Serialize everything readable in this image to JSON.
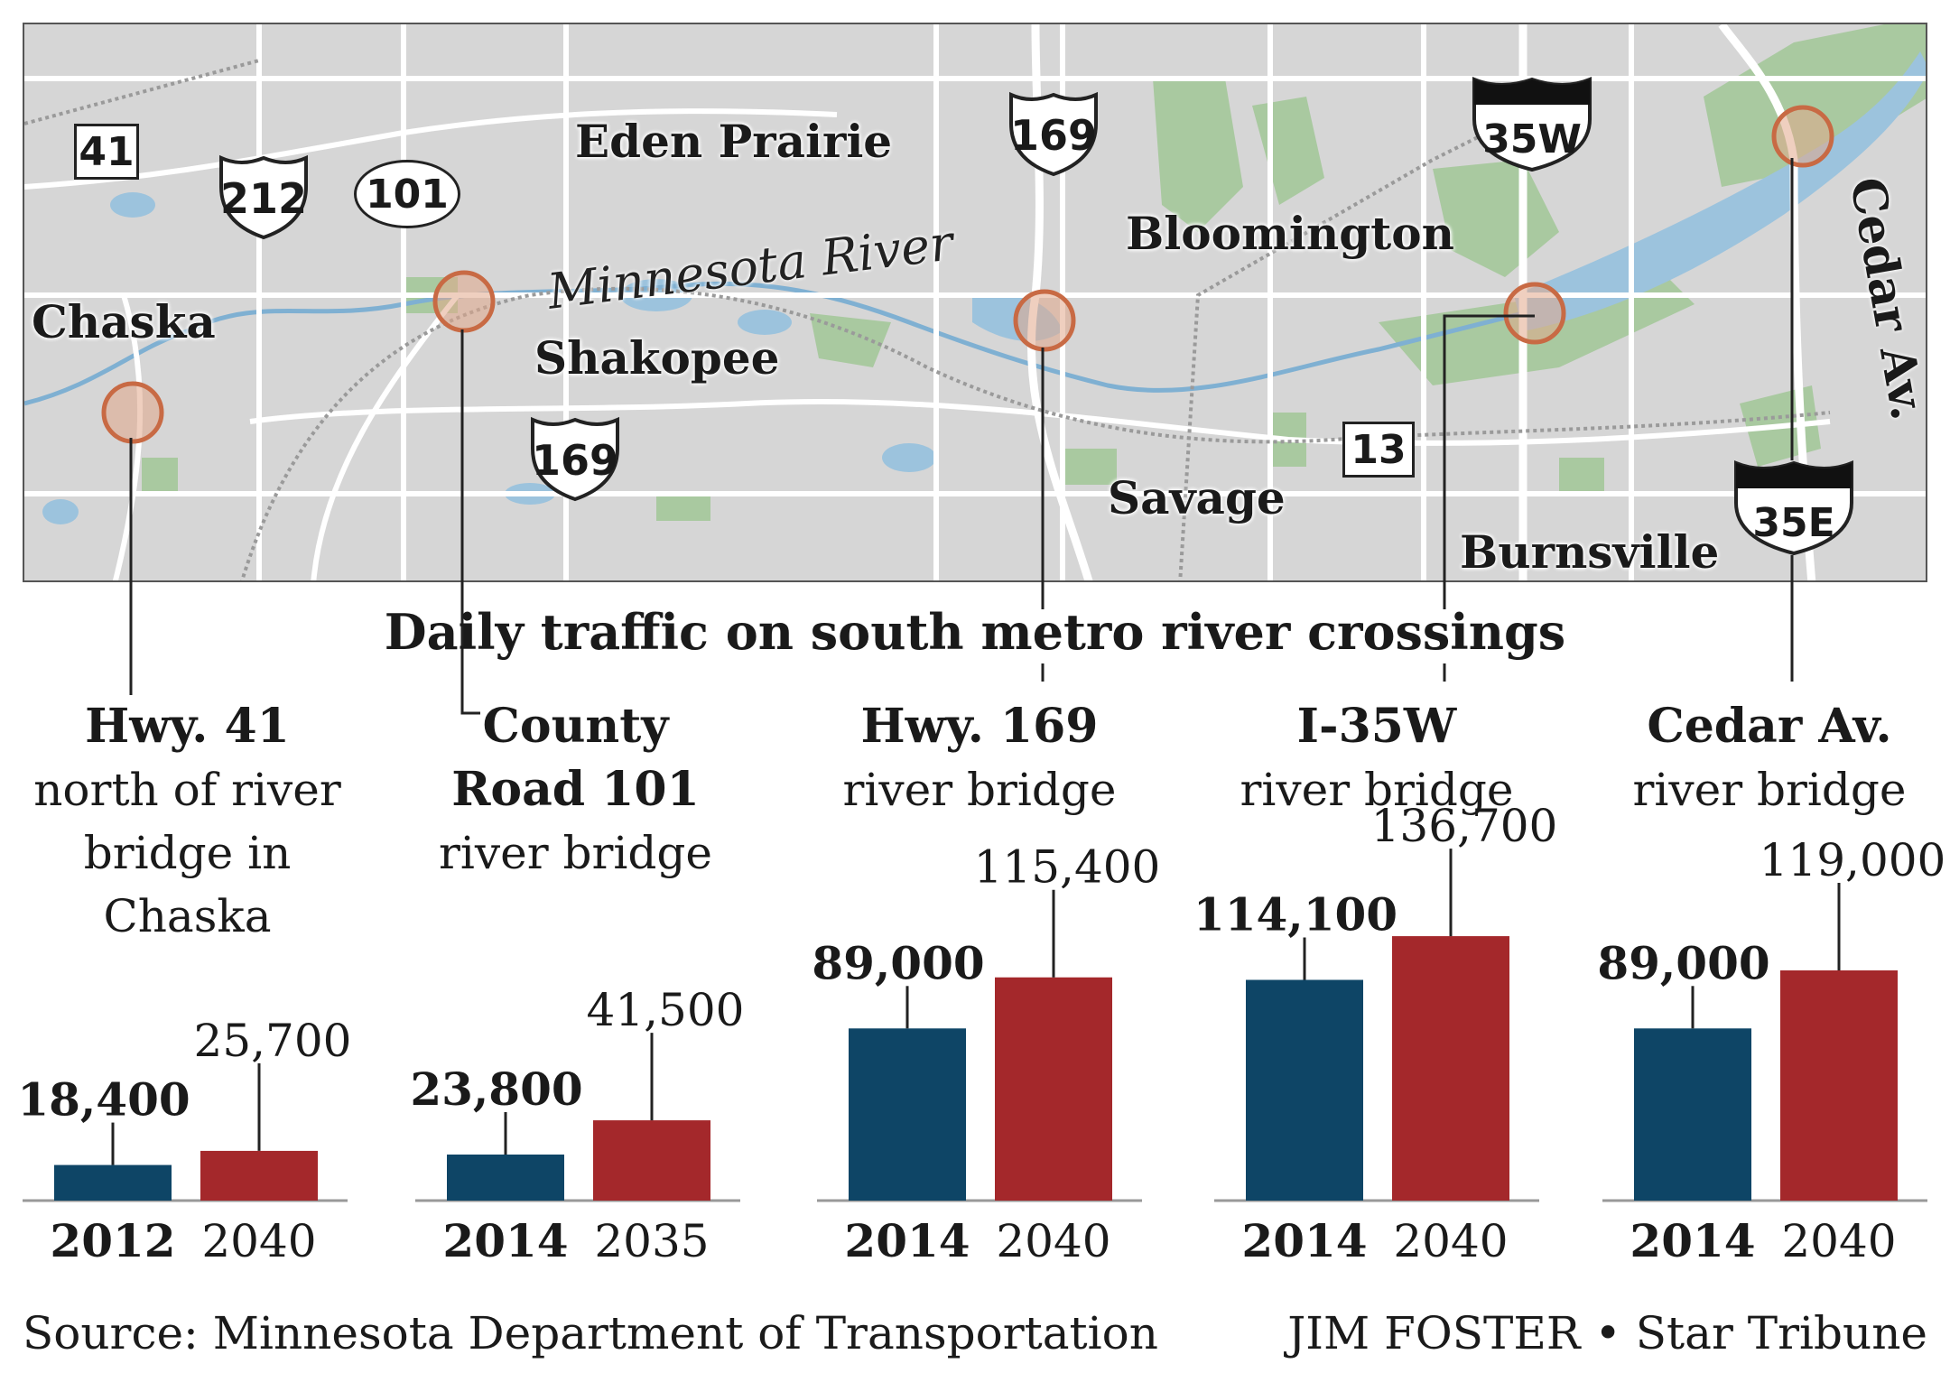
{
  "map": {
    "places": {
      "eden_prairie": "Eden Prairie",
      "bloomington": "Bloomington",
      "chaska": "Chaska",
      "shakopee": "Shakopee",
      "savage": "Savage",
      "burnsville": "Burnsville"
    },
    "river_label": "Minnesota River",
    "cedar_label": "Cedar Av.",
    "shields": {
      "hwy41": "41",
      "us212": "212",
      "cr101": "101",
      "us169_north": "169",
      "us169_south": "169",
      "i35w": "35W",
      "hwy13": "13",
      "i35e": "35E"
    },
    "colors": {
      "land": "#d6d6d6",
      "roads": "#ffffff",
      "water": "#9cc3dd",
      "parks": "#a9c9a0",
      "rail": "#9a9a9a",
      "crossing_marker": "#d08a6a"
    }
  },
  "title": "Daily traffic on south metro river crossings",
  "crossings": [
    {
      "name": "Hwy. 41",
      "desc": "north of river\nbridge in\nChaska",
      "years": [
        "2012",
        "2040"
      ],
      "values": [
        18400,
        25700
      ],
      "labels": [
        "18,400",
        "25,700"
      ]
    },
    {
      "name": "County\nRoad 101",
      "desc": "river bridge",
      "years": [
        "2014",
        "2035"
      ],
      "values": [
        23800,
        41500
      ],
      "labels": [
        "23,800",
        "41,500"
      ]
    },
    {
      "name": "Hwy. 169",
      "desc": "river bridge",
      "years": [
        "2014",
        "2040"
      ],
      "values": [
        89000,
        115400
      ],
      "labels": [
        "89,000",
        "115,400"
      ]
    },
    {
      "name": "I-35W",
      "desc": "river bridge",
      "years": [
        "2014",
        "2040"
      ],
      "values": [
        114100,
        136700
      ],
      "labels": [
        "114,100",
        "136,700"
      ]
    },
    {
      "name": "Cedar Av.",
      "desc": "river bridge",
      "years": [
        "2014",
        "2040"
      ],
      "values": [
        89000,
        119000
      ],
      "labels": [
        "89,000",
        "119,000"
      ]
    }
  ],
  "chart_colors": {
    "current": "#0e4566",
    "future": "#a4282b"
  },
  "source": "Source: Minnesota Department of Transportation",
  "credit": "JIM FOSTER • Star Tribune"
}
